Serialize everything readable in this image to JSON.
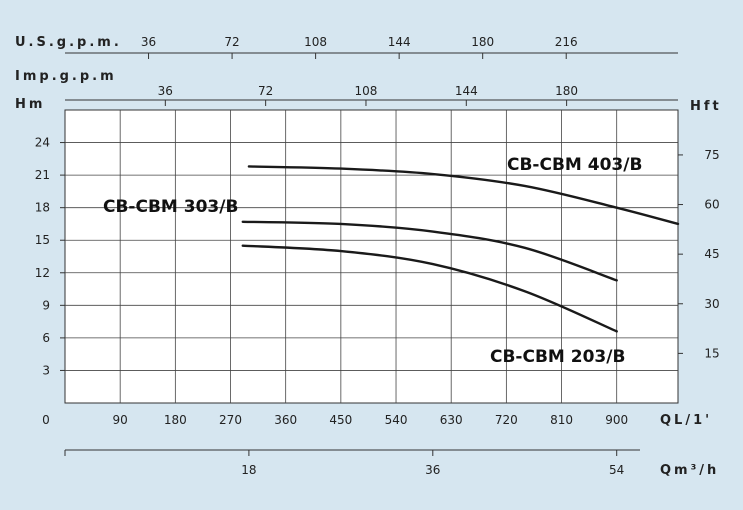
{
  "chart_data": {
    "type": "line",
    "left_axis": {
      "label": "Hm",
      "ticks": [
        3,
        6,
        9,
        12,
        15,
        18,
        21,
        24
      ],
      "range": [
        0,
        27
      ]
    },
    "right_axis": {
      "label": "Hft",
      "ticks": [
        {
          "value": 15,
          "text": "15"
        },
        {
          "value": 30,
          "text": "30"
        },
        {
          "value": 45,
          "text": "45"
        },
        {
          "value": 60,
          "text": "60"
        },
        {
          "value": 75,
          "text": "75"
        }
      ]
    },
    "bottom_axis": {
      "label": "QL/1'",
      "origin_label": "0",
      "ticks": [
        90,
        180,
        270,
        360,
        450,
        540,
        630,
        720,
        810,
        900
      ],
      "range": [
        0,
        1000
      ]
    },
    "m3h_axis": {
      "label": "Qm³/h",
      "ticks": [
        18,
        36,
        54
      ]
    },
    "usgpm_axis": {
      "label": "U.S.g.p.m.",
      "ticks": [
        36,
        72,
        108,
        144,
        180,
        216
      ]
    },
    "impgpm_axis": {
      "label": "Imp.g.p.m",
      "ticks": [
        36,
        72,
        108,
        144,
        180
      ]
    },
    "grid": true,
    "series": [
      {
        "name": "CB-CBM 403/B",
        "x": [
          300,
          450,
          600,
          750,
          900,
          1000
        ],
        "y": [
          21.8,
          21.6,
          21.1,
          20.0,
          18.0,
          16.5
        ]
      },
      {
        "name": "CB-CBM 303/B",
        "x": [
          290,
          450,
          600,
          750,
          900
        ],
        "y": [
          16.7,
          16.5,
          15.8,
          14.3,
          11.3
        ]
      },
      {
        "name": "CB-CBM 203/B",
        "x": [
          290,
          450,
          600,
          750,
          900
        ],
        "y": [
          14.5,
          14.0,
          12.8,
          10.3,
          6.6
        ]
      }
    ]
  }
}
